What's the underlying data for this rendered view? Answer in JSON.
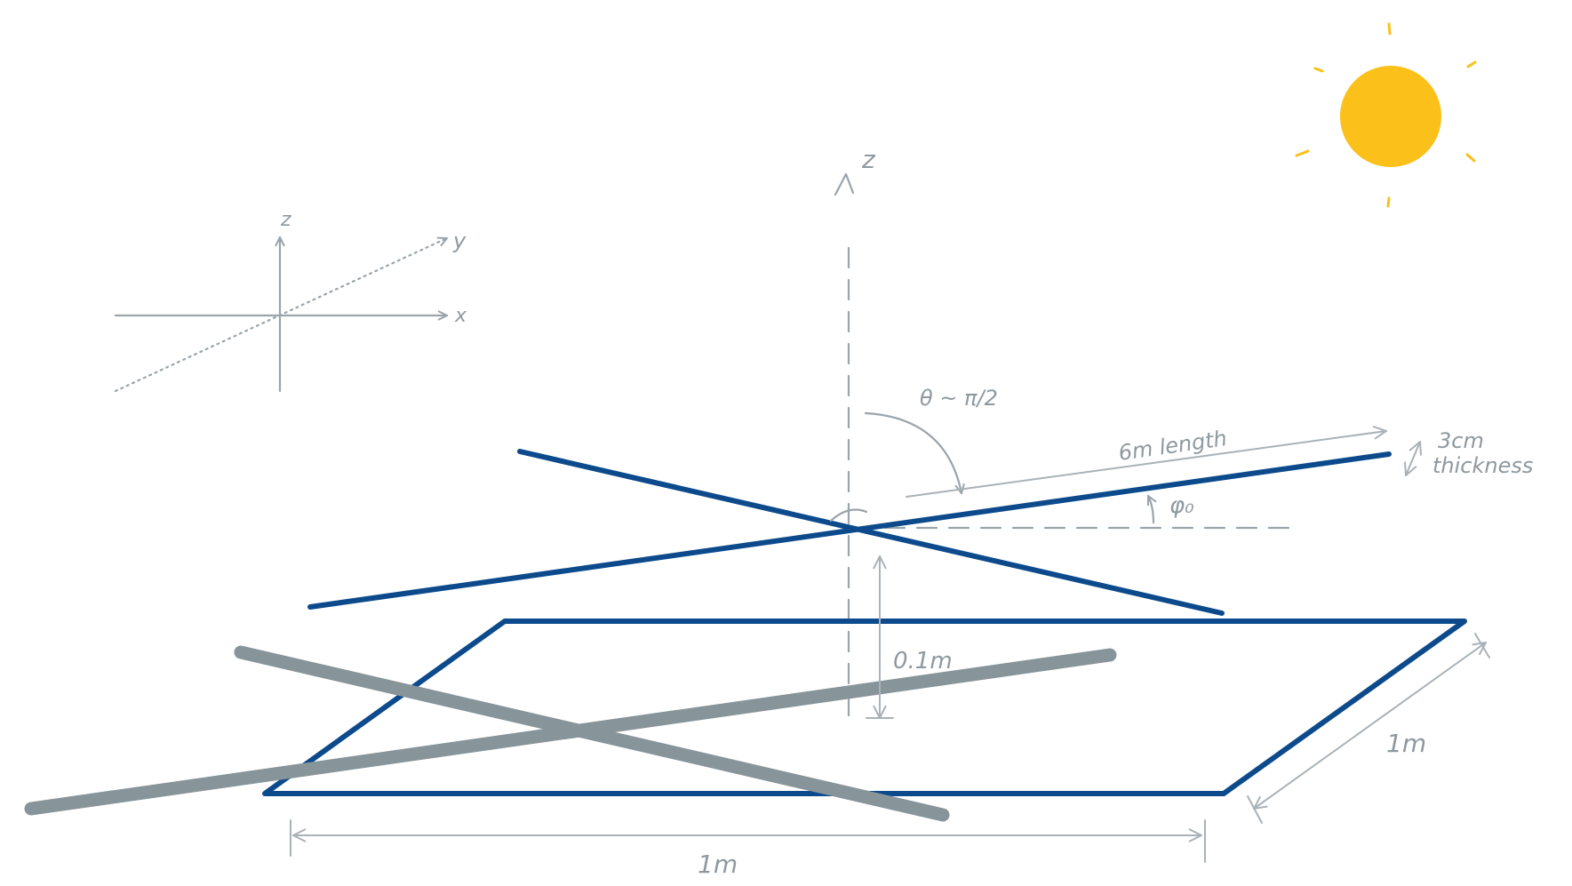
{
  "labels": {
    "axis_z_main": "z",
    "axes_z": "z",
    "axes_y": "y",
    "axes_x": "x",
    "theta": "θ ~ π/2",
    "length": "6m length",
    "thickness_value": "3cm",
    "thickness_word": "thickness",
    "phi": "φ₀",
    "height": "0.1m",
    "width_dim": "1m",
    "depth_dim": "1m"
  },
  "colors": {
    "sun": "#fbc01a",
    "blue_panel": "#0c4a8c",
    "gray_bars": "#87949a",
    "annotation": "#9aa4aa"
  },
  "icons": {
    "sun": "sun-icon"
  }
}
